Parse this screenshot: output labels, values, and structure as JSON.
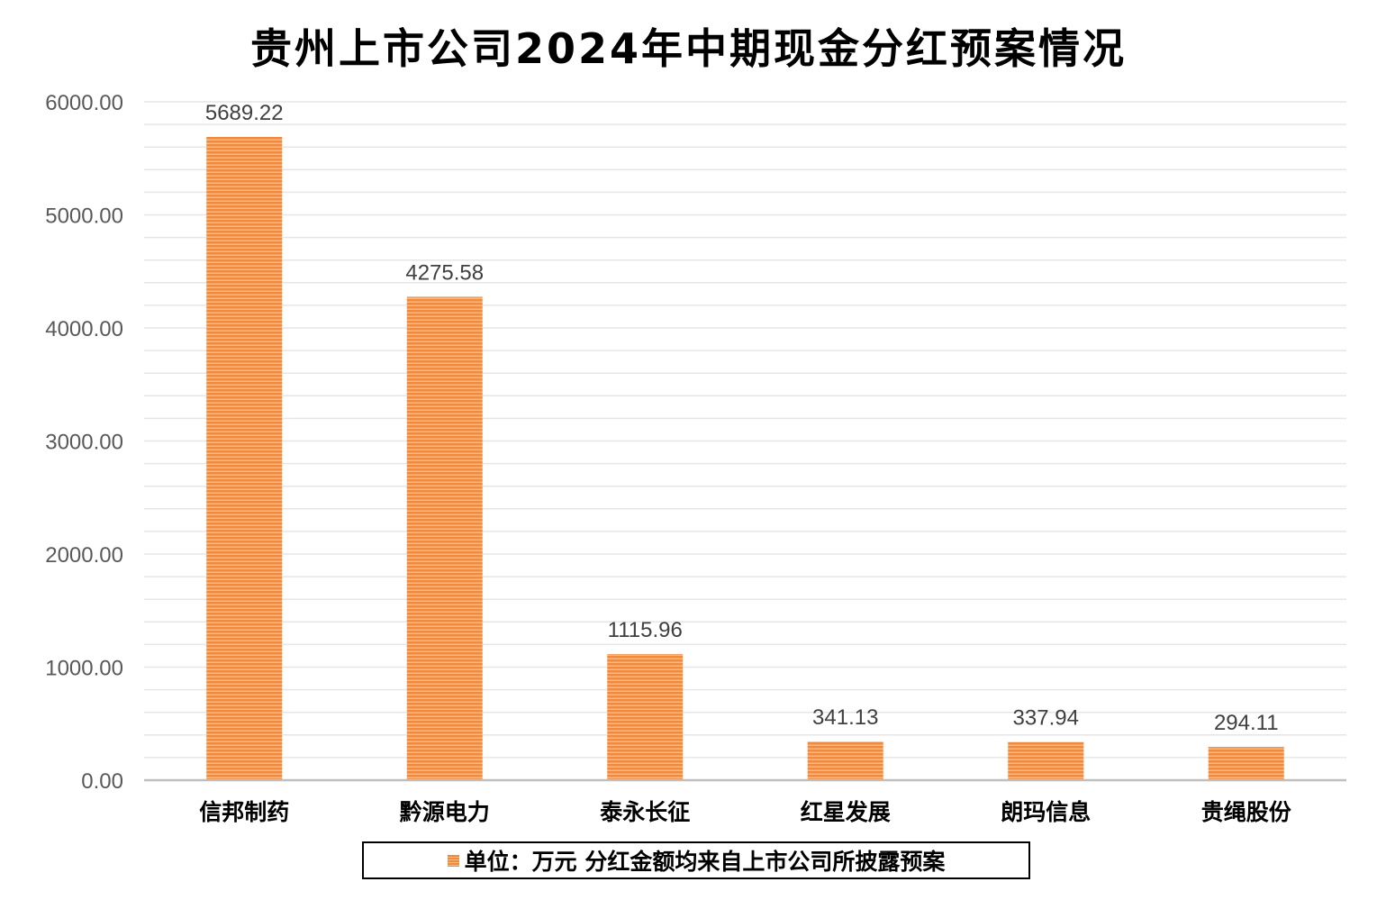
{
  "chart_data": {
    "type": "bar",
    "title": "贵州上市公司2024年中期现金分红预案情况",
    "categories": [
      "信邦制药",
      "黔源电力",
      "泰永长征",
      "红星发展",
      "朗玛信息",
      "贵绳股份"
    ],
    "values": [
      5689.22,
      4275.58,
      1115.96,
      341.13,
      337.94,
      294.11
    ],
    "data_labels": [
      "5689.22",
      "4275.58",
      "1115.96",
      "341.13",
      "337.94",
      "294.11"
    ],
    "ylim": [
      0,
      6000
    ],
    "yticks": [
      "0.00",
      "1000.00",
      "2000.00",
      "3000.00",
      "4000.00",
      "5000.00",
      "6000.00"
    ],
    "grid": true,
    "legend": {
      "label": "单位：万元 分红金额均来自上市公司所披露预案",
      "position": "bottom"
    },
    "colors": {
      "bar": "#f08a3c",
      "bar_stripe": "#f6b98a",
      "grid": "#e6e6e6",
      "axis": "#bfbfbf"
    }
  }
}
